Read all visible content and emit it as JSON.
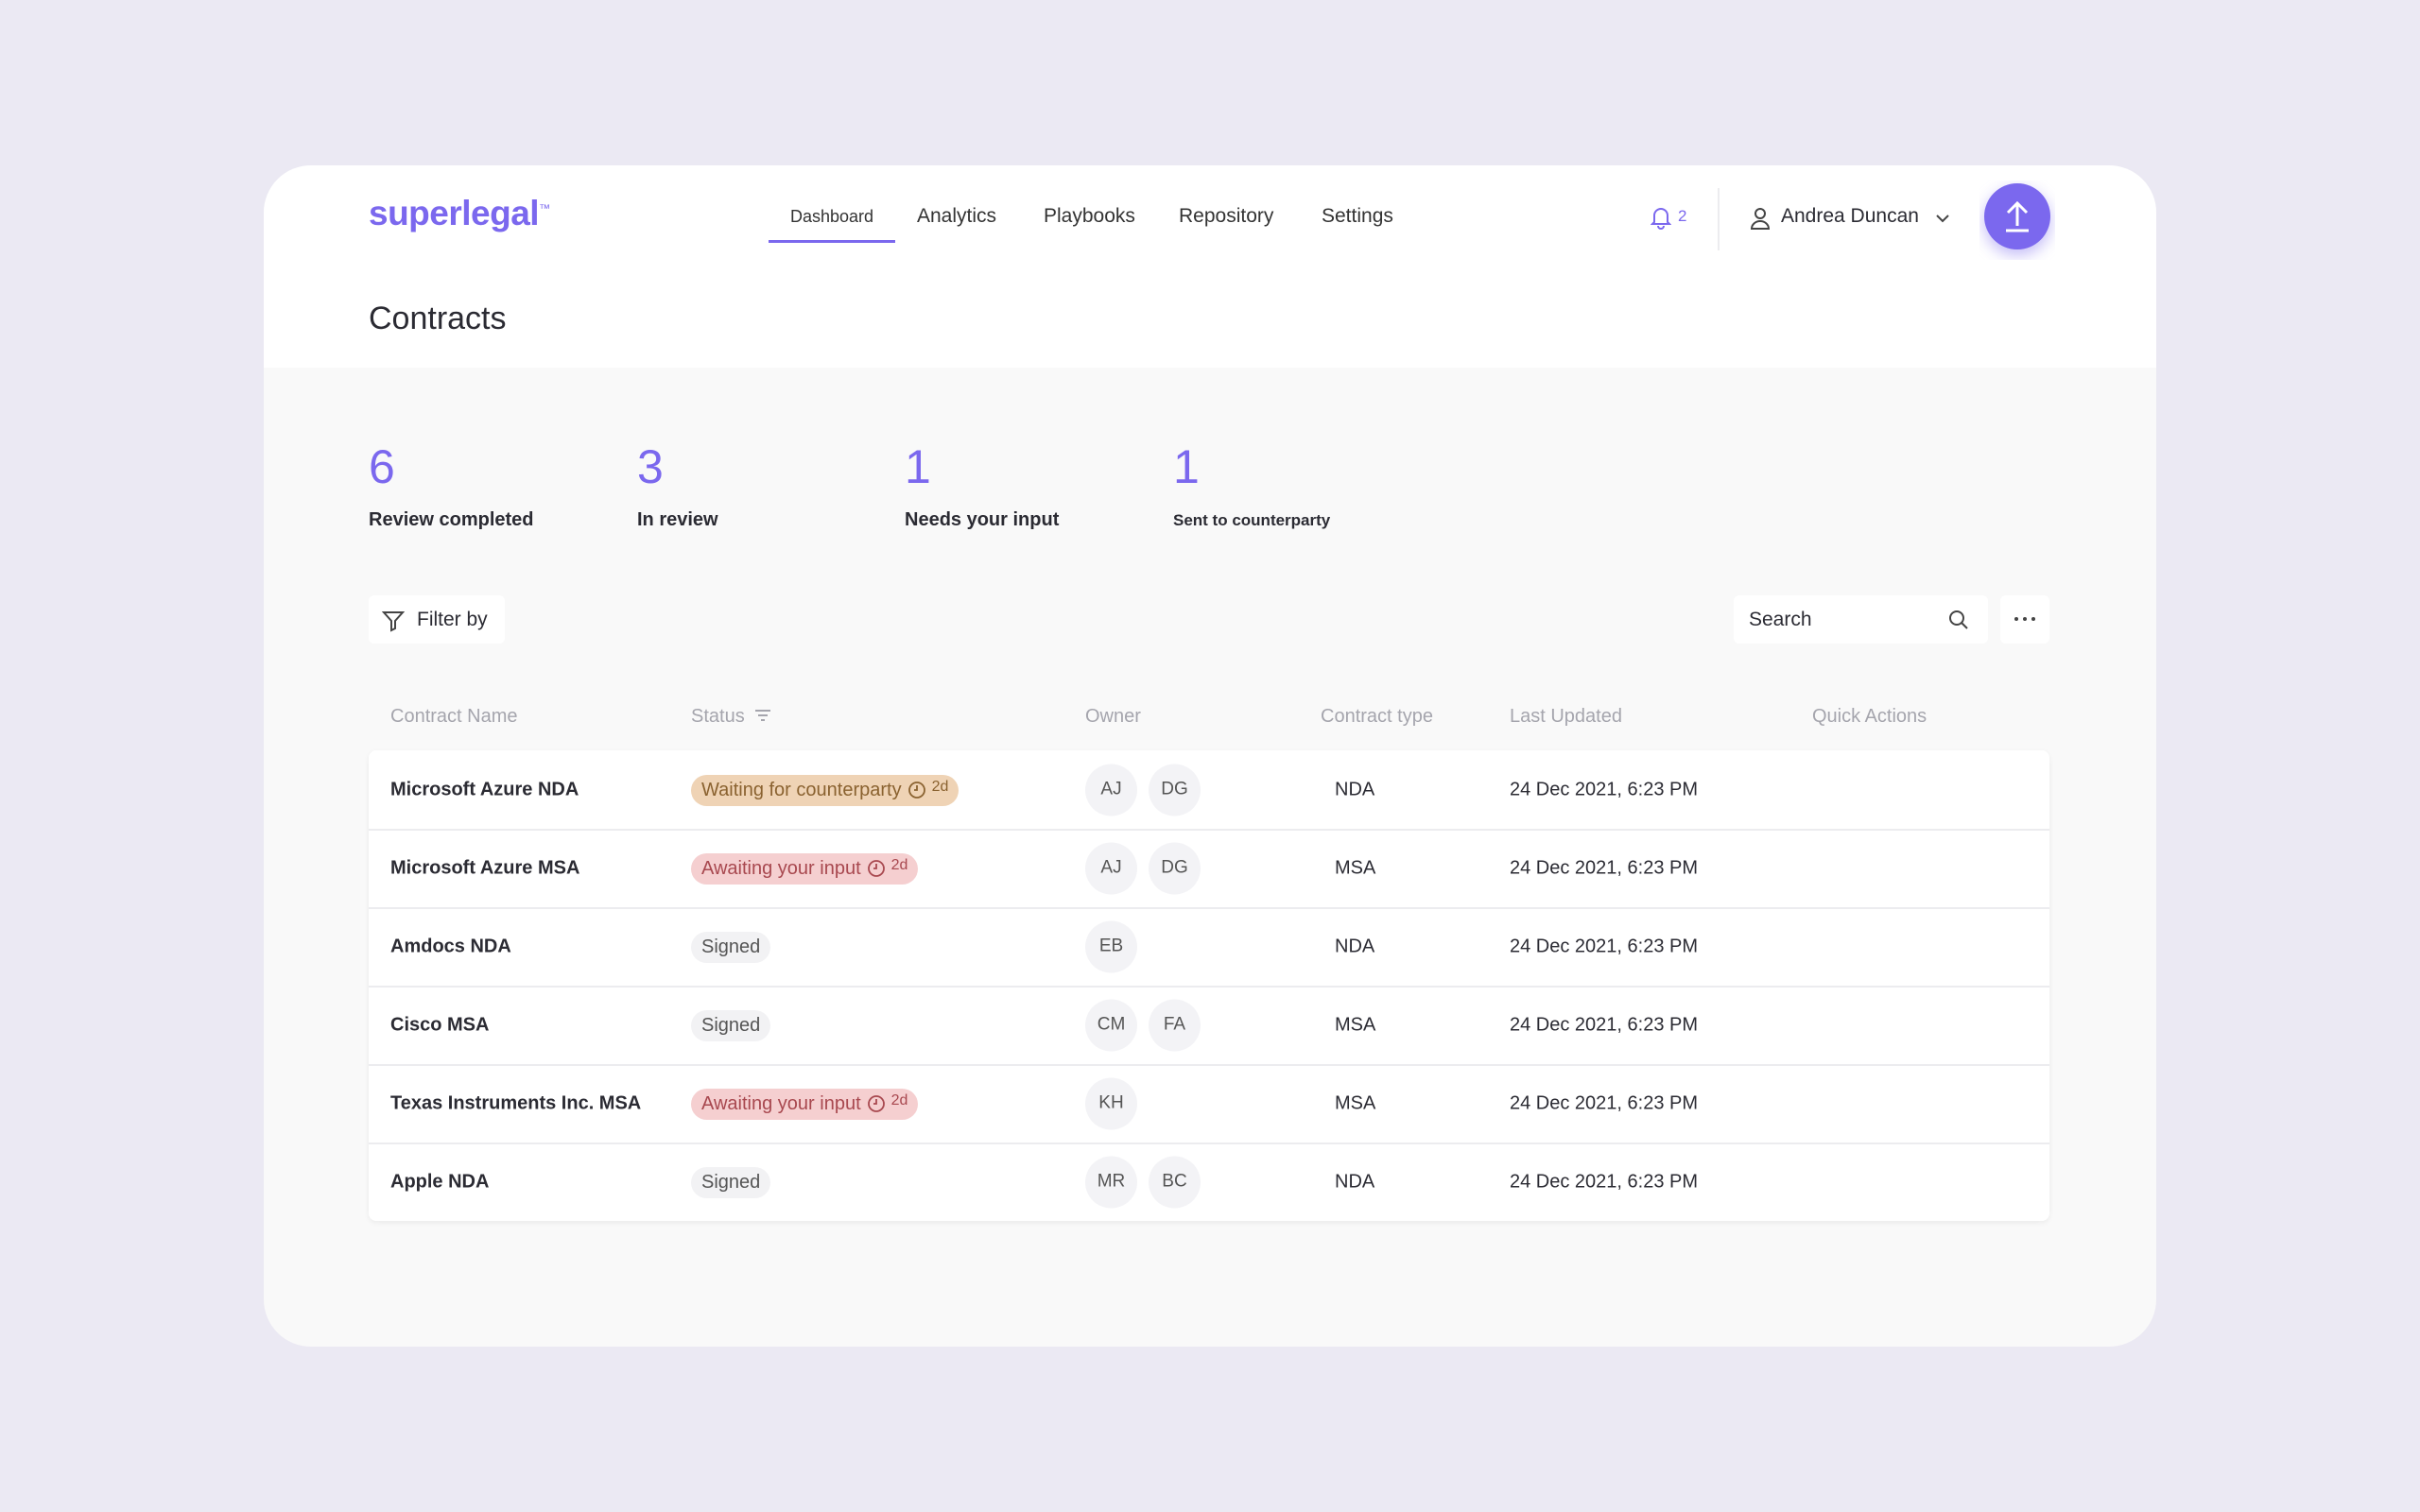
{
  "header": {
    "logo": "superlegal",
    "logo_mark": "™",
    "nav": [
      "Dashboard",
      "Analytics",
      "Playbooks",
      "Repository",
      "Settings"
    ],
    "notifications": "2",
    "user": "Andrea Duncan"
  },
  "title": "Contracts",
  "stats": [
    {
      "value": "6",
      "label": "Review completed"
    },
    {
      "value": "3",
      "label": "In review"
    },
    {
      "value": "1",
      "label": "Needs your input"
    },
    {
      "value": "1",
      "label": "Sent to counterparty"
    }
  ],
  "toolbar": {
    "filter": "Filter by",
    "search": "Search"
  },
  "table": {
    "columns": [
      "Contract Name",
      "Status",
      "Owner",
      "Contract type",
      "Last Updated",
      "Quick Actions"
    ],
    "rows": [
      {
        "name": "Microsoft Azure NDA",
        "status": {
          "label": "Waiting for counterparty",
          "age": "2d",
          "color": "#efd3b5",
          "text_color": "#8a6230"
        },
        "owners": [
          "AJ",
          "DG"
        ],
        "type": "NDA",
        "updated": "24 Dec 2021, 6:23 PM"
      },
      {
        "name": "Microsoft Azure MSA",
        "status": {
          "label": "Awaiting your input",
          "age": "2d",
          "color": "#f5cfd0",
          "text_color": "#a8484f"
        },
        "owners": [
          "AJ",
          "DG"
        ],
        "type": "MSA",
        "updated": "24 Dec 2021, 6:23 PM"
      },
      {
        "name": "Amdocs NDA",
        "status": {
          "label": "Signed",
          "color": "#f2f2f4",
          "text_color": "#555555"
        },
        "owners": [
          "EB"
        ],
        "type": "NDA",
        "updated": "24 Dec 2021, 6:23 PM"
      },
      {
        "name": "Cisco MSA",
        "status": {
          "label": "Signed",
          "color": "#f2f2f4",
          "text_color": "#555555"
        },
        "owners": [
          "CM",
          "FA"
        ],
        "type": "MSA",
        "updated": "24 Dec 2021, 6:23 PM"
      },
      {
        "name": "Texas Instruments Inc. MSA",
        "status": {
          "label": "Awaiting your input",
          "age": "2d",
          "color": "#f5cfd0",
          "text_color": "#a8484f"
        },
        "owners": [
          "KH"
        ],
        "type": "MSA",
        "updated": "24 Dec 2021, 6:23 PM"
      },
      {
        "name": "Apple NDA",
        "status": {
          "label": "Signed",
          "color": "#f2f2f4",
          "text_color": "#555555"
        },
        "owners": [
          "MR",
          "BC"
        ],
        "type": "NDA",
        "updated": "24 Dec 2021, 6:23 PM"
      }
    ]
  }
}
